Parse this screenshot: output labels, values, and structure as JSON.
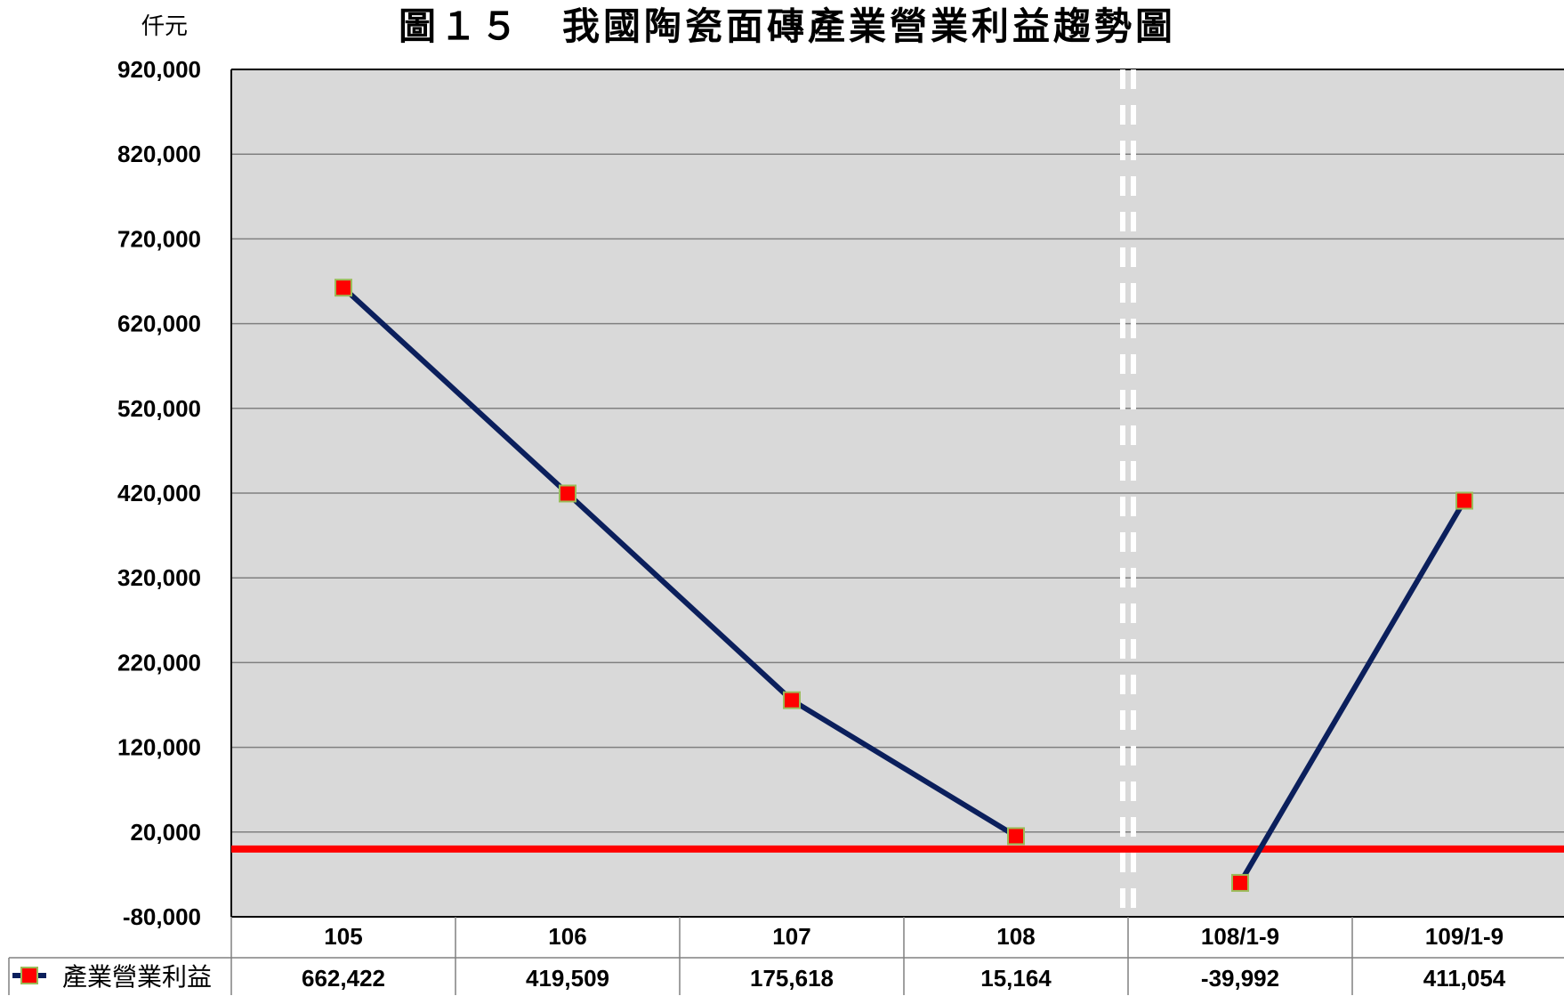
{
  "chart_data": {
    "type": "line",
    "title": "圖１５　我國陶瓷面磚產業營業利益趨勢圖",
    "unit_label": "仟元",
    "categories": [
      "105",
      "106",
      "107",
      "108",
      "108/1-9",
      "109/1-9"
    ],
    "series": [
      {
        "name": "產業營業利益",
        "values": [
          662422,
          419509,
          175618,
          15164,
          -39992,
          411054
        ],
        "value_labels": [
          "662,422",
          "419,509",
          "175,618",
          "15,164",
          "-39,992",
          "411,054"
        ]
      }
    ],
    "ylim": [
      -80000,
      920000
    ],
    "yticks": [
      -80000,
      20000,
      120000,
      220000,
      320000,
      420000,
      520000,
      620000,
      720000,
      820000,
      920000
    ],
    "ytick_labels": [
      "-80,000",
      "20,000",
      "120,000",
      "220,000",
      "320,000",
      "420,000",
      "520,000",
      "620,000",
      "720,000",
      "820,000",
      "920,000"
    ],
    "reference_line": 0,
    "grid": true,
    "break_between": [
      "108",
      "108/1-9"
    ],
    "data_table": true,
    "colors": {
      "plot_bg": "#d9d9d9",
      "line": "#0b1f5c",
      "marker_fill": "#ff0000",
      "marker_edge": "#9bbb59",
      "zero_line": "#ff0000",
      "break_line": "#ffffff",
      "grid": "#808080"
    }
  }
}
